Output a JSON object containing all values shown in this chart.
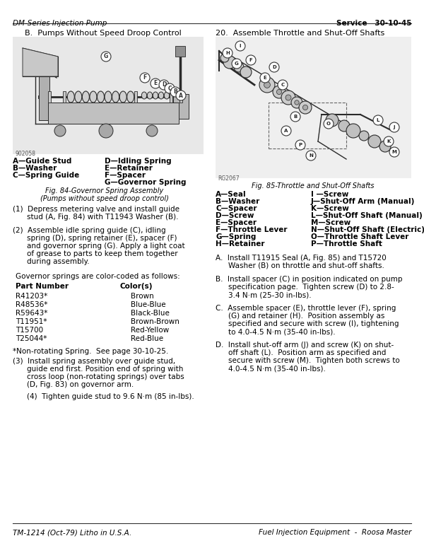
{
  "header_left": "DM-Series Injection Pump",
  "header_right": "Service   30-10-45",
  "footer_left": "TM-1214 (Oct-79) Litho in U.S.A.",
  "footer_right": "Fuel Injection Equipment  -  Roosa Master",
  "section_B_title": "B.  Pumps Without Speed Droop Control",
  "fig84_caption_line1": "Fig. 84-Governor Spring Assembly",
  "fig84_caption_line2": "(Pumps without speed droop control)",
  "fig84_labels_left": [
    "A—Guide Stud",
    "B—Washer",
    "C—Spring Guide"
  ],
  "fig84_labels_right": [
    "D—Idling Spring",
    "E—Retainer",
    "F—Spacer",
    "G—Governor Spring"
  ],
  "fig84_number": "902058",
  "section20_title": "20.  Assemble Throttle and Shut-Off Shafts",
  "fig85_caption": "Fig. 85-Throttle and Shut-Off Shafts",
  "fig85_number": "RG2067",
  "fig85_labels_left": [
    "A—Seal",
    "B—Washer",
    "C—Spacer",
    "D—Screw",
    "E—Spacer",
    "F—Throttle Lever",
    "G—Spring",
    "H—Retainer"
  ],
  "fig85_labels_right": [
    "I —Screw",
    "J—Shut-Off Arm (Manual)",
    "K—Screw",
    "L—Shut-Off Shaft (Manual)",
    "M—Screw",
    "N—Shut-Off Shaft (Electric)",
    "O—Throttle Shaft Lever",
    "P—Throttle Shaft"
  ],
  "step1_lines": [
    "(1)  Depress metering valve and install guide",
    "stud (A, Fig. 84) with T11943 Washer (B)."
  ],
  "step2_lines": [
    "(2)  Assemble idle spring guide (C), idling",
    "spring (D), spring retainer (E), spacer (F)",
    "and governor spring (G). Apply a light coat",
    "of grease to parts to keep them together",
    "during assembly."
  ],
  "spring_intro": "Governor springs are color-coded as follows:",
  "spring_col1_header": "Part Number",
  "spring_col2_header": "Color(s)",
  "spring_table": [
    [
      "R41203*",
      "Brown"
    ],
    [
      "R48536*",
      "Blue-Blue"
    ],
    [
      "R59643*",
      "Black-Blue"
    ],
    [
      "T11951*",
      "Brown-Brown"
    ],
    [
      "T15700",
      "Red-Yellow"
    ],
    [
      "T25044*",
      "Red-Blue"
    ]
  ],
  "non_rotating_note": "*Non-rotating Spring.  See page 30-10-25.",
  "step3_lines": [
    "(3)  Install spring assembly over guide stud,",
    "guide end first. Position end of spring with",
    "cross loop (non-rotating springs) over tabs",
    "(D, Fig. 83) on governor arm."
  ],
  "step4": "(4)  Tighten guide stud to 9.6 N·m (85 in-lbs).",
  "stepA_lines": [
    "A.  Install T11915 Seal (A, Fig. 85) and T15720",
    "Washer (B) on throttle and shut-off shafts."
  ],
  "stepB_lines": [
    "B.  Install spacer (C) in position indicated on pump",
    "specification page.  Tighten screw (D) to 2.8-",
    "3.4 N·m (25-30 in-lbs)."
  ],
  "stepC_lines": [
    "C.  Assemble spacer (E), throttle lever (F), spring",
    "(G) and retainer (H).  Position assembly as",
    "specified and secure with screw (I), tightening",
    "to 4.0-4.5 N·m (35-40 in-lbs)."
  ],
  "stepD_lines": [
    "D.  Install shut-off arm (J) and screw (K) on shut-",
    "off shaft (L).  Position arm as specified and",
    "secure with screw (M).  Tighten both screws to",
    "4.0-4.5 N·m (35-40 in-lbs)."
  ],
  "bg_color": "#ffffff"
}
